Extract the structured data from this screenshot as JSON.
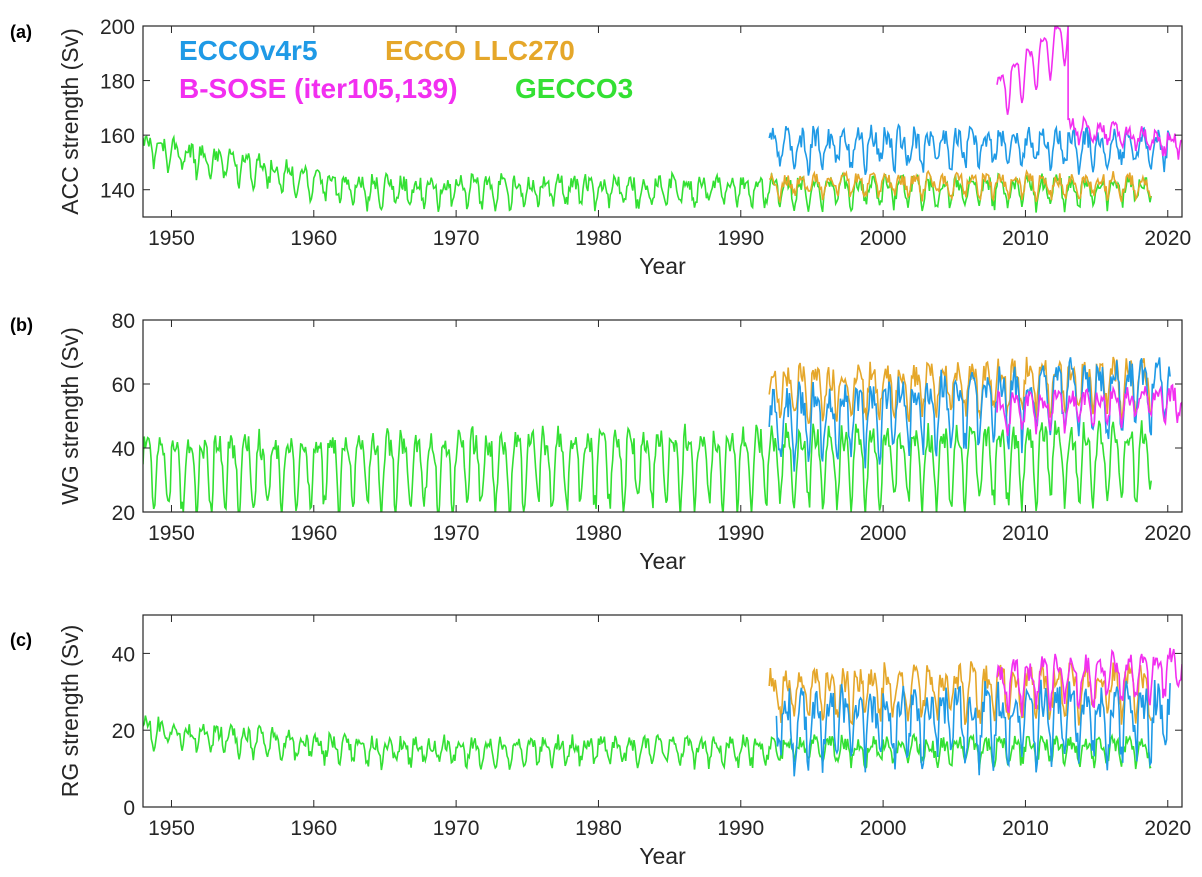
{
  "chart_data": [
    {
      "type": "line",
      "panel_label": "(a)",
      "xlabel": "Year",
      "ylabel": "ACC strength (Sv)",
      "xlim": [
        1948,
        2021
      ],
      "ylim": [
        130,
        200
      ],
      "xticks": [
        1950,
        1960,
        1970,
        1980,
        1990,
        2000,
        2010,
        2020
      ],
      "yticks": [
        140,
        160,
        180,
        200
      ],
      "legend": "top-left",
      "series": [
        {
          "name": "ECCOv4r5",
          "color": "#1f9ae6",
          "start": 1992,
          "end": 2020.2,
          "mean": 156,
          "trend": 0.0,
          "amp": 5,
          "noise": 4
        },
        {
          "name": "ECCO LLC270",
          "color": "#e5a72a",
          "start": 1992,
          "end": 2018.9,
          "mean": 142,
          "trend": 0.0,
          "amp": 3,
          "noise": 2.5
        },
        {
          "name": "B-SOSE (iter105,139)",
          "color": "#f22ff0",
          "start": 2008,
          "end": 2021,
          "segments": [
            {
              "start": 2008,
              "end": 2013,
              "mean": 175,
              "trend": 4.5,
              "amp": 8,
              "noise": 1
            },
            {
              "start": 2013,
              "end": 2021,
              "mean": 163,
              "trend": -0.8,
              "amp": 3,
              "noise": 2.5
            }
          ]
        },
        {
          "name": "GECCO3",
          "color": "#33e033",
          "start": 1948,
          "end": 2018.9,
          "mean": 140,
          "trend": 0.0,
          "start_value": 156,
          "amp": 4,
          "noise": 3
        }
      ]
    },
    {
      "type": "line",
      "panel_label": "(b)",
      "xlabel": "Year",
      "ylabel": "WG strength (Sv)",
      "xlim": [
        1948,
        2021
      ],
      "ylim": [
        20,
        80
      ],
      "xticks": [
        1950,
        1960,
        1970,
        1980,
        1990,
        2000,
        2010,
        2020
      ],
      "yticks": [
        20,
        40,
        60,
        80
      ],
      "series": [
        {
          "name": "ECCOv4r5",
          "color": "#1f9ae6",
          "start": 1992,
          "end": 2020.2,
          "mean": 48,
          "trend": 0.4,
          "amp": 9,
          "noise": 5
        },
        {
          "name": "ECCO LLC270",
          "color": "#e5a72a",
          "start": 1992,
          "end": 2018.9,
          "mean": 58,
          "trend": 0.1,
          "amp": 6,
          "noise": 4
        },
        {
          "name": "B-SOSE (iter105,139)",
          "color": "#f22ff0",
          "start": 2008,
          "end": 2021,
          "mean": 52,
          "trend": 0.2,
          "amp": 4,
          "noise": 3
        },
        {
          "name": "GECCO3",
          "color": "#33e033",
          "start": 1948,
          "end": 2018.9,
          "mean": 34,
          "trend": 0.05,
          "amp": 10,
          "noise": 4
        }
      ]
    },
    {
      "type": "line",
      "panel_label": "(c)",
      "xlabel": "Year",
      "ylabel": "RG strength (Sv)",
      "xlim": [
        1948,
        2021
      ],
      "ylim": [
        0,
        50
      ],
      "xticks": [
        1950,
        1960,
        1970,
        1980,
        1990,
        2000,
        2010,
        2020
      ],
      "yticks": [
        0,
        20,
        40
      ],
      "series": [
        {
          "name": "ECCOv4r5",
          "color": "#1f9ae6",
          "start": 1992.5,
          "end": 2020.2,
          "mean": 22,
          "trend": 0.05,
          "amp": 7,
          "noise": 5
        },
        {
          "name": "ECCO LLC270",
          "color": "#e5a72a",
          "start": 1992,
          "end": 2018.9,
          "mean": 30,
          "trend": 0.05,
          "amp": 5,
          "noise": 3.5
        },
        {
          "name": "B-SOSE (iter105,139)",
          "color": "#f22ff0",
          "start": 2008,
          "end": 2021,
          "mean": 32,
          "trend": 0.3,
          "amp": 5,
          "noise": 3
        },
        {
          "name": "GECCO3",
          "color": "#33e033",
          "start": 1948,
          "end": 2018.9,
          "mean": 15,
          "trend": 0.0,
          "start_value": 20,
          "amp": 2.5,
          "noise": 2
        }
      ]
    }
  ]
}
